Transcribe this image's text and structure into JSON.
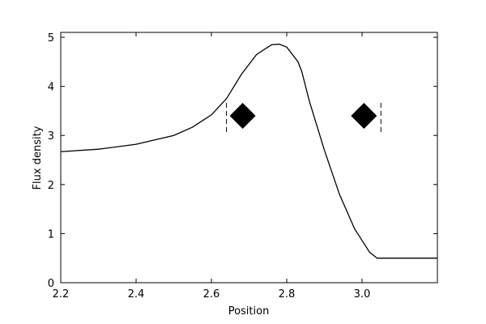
{
  "chart_data": {
    "type": "line",
    "x_label": "Position",
    "y_label": "Flux density",
    "x": [
      2.2,
      2.3,
      2.4,
      2.5,
      2.55,
      2.6,
      2.64,
      2.68,
      2.72,
      2.76,
      2.78,
      2.8,
      2.83,
      2.84,
      2.86,
      2.9,
      2.94,
      2.98,
      3.02,
      3.04,
      3.1,
      3.2
    ],
    "series": [
      {
        "color": "#000000",
        "values": [
          2.67,
          2.72,
          2.82,
          3.0,
          3.17,
          3.42,
          3.75,
          4.25,
          4.65,
          4.85,
          4.86,
          4.8,
          4.5,
          4.3,
          3.7,
          2.7,
          1.8,
          1.1,
          0.62,
          0.5,
          0.5,
          0.5
        ]
      }
    ],
    "markers": {
      "x": [
        2.683,
        3.005
      ],
      "y": [
        3.4,
        3.4
      ],
      "color": "#000000"
    },
    "vlines": {
      "x": [
        2.64,
        3.05
      ],
      "ymin": 3.07,
      "ymax": 3.73,
      "color": "#000000"
    },
    "xlim": [
      2.2,
      3.2
    ],
    "ylim": [
      0,
      5.1
    ],
    "xticks": [
      2.2,
      2.4,
      2.6,
      2.8,
      {
        "value": 3,
        "label": "3.0"
      }
    ],
    "yticks": [
      0,
      1,
      2,
      3,
      4,
      5
    ]
  }
}
